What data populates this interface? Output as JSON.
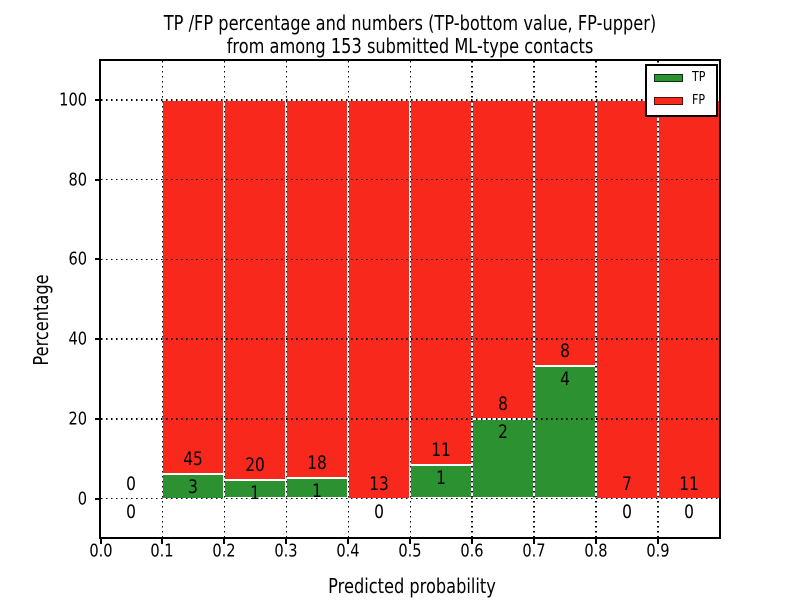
{
  "figure": {
    "title_line1": "TP /FP percentage and numbers (TP-bottom value, FP-upper)",
    "title_line2": "from among 153 submitted ML-type contacts",
    "xlabel": "Predicted probability",
    "ylabel": "Percentage"
  },
  "legend": {
    "tp_label": "TP",
    "fp_label": "FP"
  },
  "chart_data": {
    "type": "bar",
    "stacked": true,
    "units": "percent",
    "title": "TP /FP percentage and numbers (TP-bottom value, FP-upper)\nfrom among 153 submitted ML-type contacts",
    "xlabel": "Predicted probability",
    "ylabel": "Percentage",
    "total_contacts": 153,
    "xlim": [
      0.0,
      1.0
    ],
    "ylim": [
      -10,
      110
    ],
    "grid": true,
    "grid_style": "dotted",
    "x_ticks": [
      "0.0",
      "0.1",
      "0.2",
      "0.3",
      "0.4",
      "0.5",
      "0.6",
      "0.7",
      "0.8",
      "0.9"
    ],
    "y_ticks": [
      0,
      20,
      40,
      60,
      80,
      100
    ],
    "legend_position": "upper right",
    "series": [
      {
        "name": "TP",
        "color": "#2c9231",
        "values": [
          0,
          3,
          1,
          1,
          0,
          1,
          2,
          4,
          0,
          0
        ]
      },
      {
        "name": "FP",
        "color": "#f8281c",
        "values": [
          0,
          45,
          20,
          18,
          13,
          11,
          8,
          8,
          7,
          11
        ]
      }
    ],
    "bins": [
      {
        "range": [
          0.0,
          0.1
        ],
        "tp": 0,
        "fp": 0,
        "tp_pct": 0.0,
        "fp_pct": 0.0
      },
      {
        "range": [
          0.1,
          0.2
        ],
        "tp": 3,
        "fp": 45,
        "tp_pct": 6.25,
        "fp_pct": 93.75
      },
      {
        "range": [
          0.2,
          0.3
        ],
        "tp": 1,
        "fp": 20,
        "tp_pct": 4.76,
        "fp_pct": 95.24
      },
      {
        "range": [
          0.3,
          0.4
        ],
        "tp": 1,
        "fp": 18,
        "tp_pct": 5.26,
        "fp_pct": 94.74
      },
      {
        "range": [
          0.4,
          0.5
        ],
        "tp": 0,
        "fp": 13,
        "tp_pct": 0.0,
        "fp_pct": 100.0
      },
      {
        "range": [
          0.5,
          0.6
        ],
        "tp": 1,
        "fp": 11,
        "tp_pct": 8.33,
        "fp_pct": 91.67
      },
      {
        "range": [
          0.6,
          0.7
        ],
        "tp": 2,
        "fp": 8,
        "tp_pct": 20.0,
        "fp_pct": 80.0
      },
      {
        "range": [
          0.7,
          0.8
        ],
        "tp": 4,
        "fp": 8,
        "tp_pct": 33.33,
        "fp_pct": 66.67
      },
      {
        "range": [
          0.8,
          0.9
        ],
        "tp": 0,
        "fp": 7,
        "tp_pct": 0.0,
        "fp_pct": 100.0
      },
      {
        "range": [
          0.9,
          1.0
        ],
        "tp": 0,
        "fp": 11,
        "tp_pct": 0.0,
        "fp_pct": 100.0
      }
    ],
    "colors": {
      "tp": "#2c9231",
      "fp": "#f8281c",
      "bar_edge": "#ffffff",
      "grid": "#000000",
      "text": "#000000",
      "background": "#ffffff"
    }
  }
}
